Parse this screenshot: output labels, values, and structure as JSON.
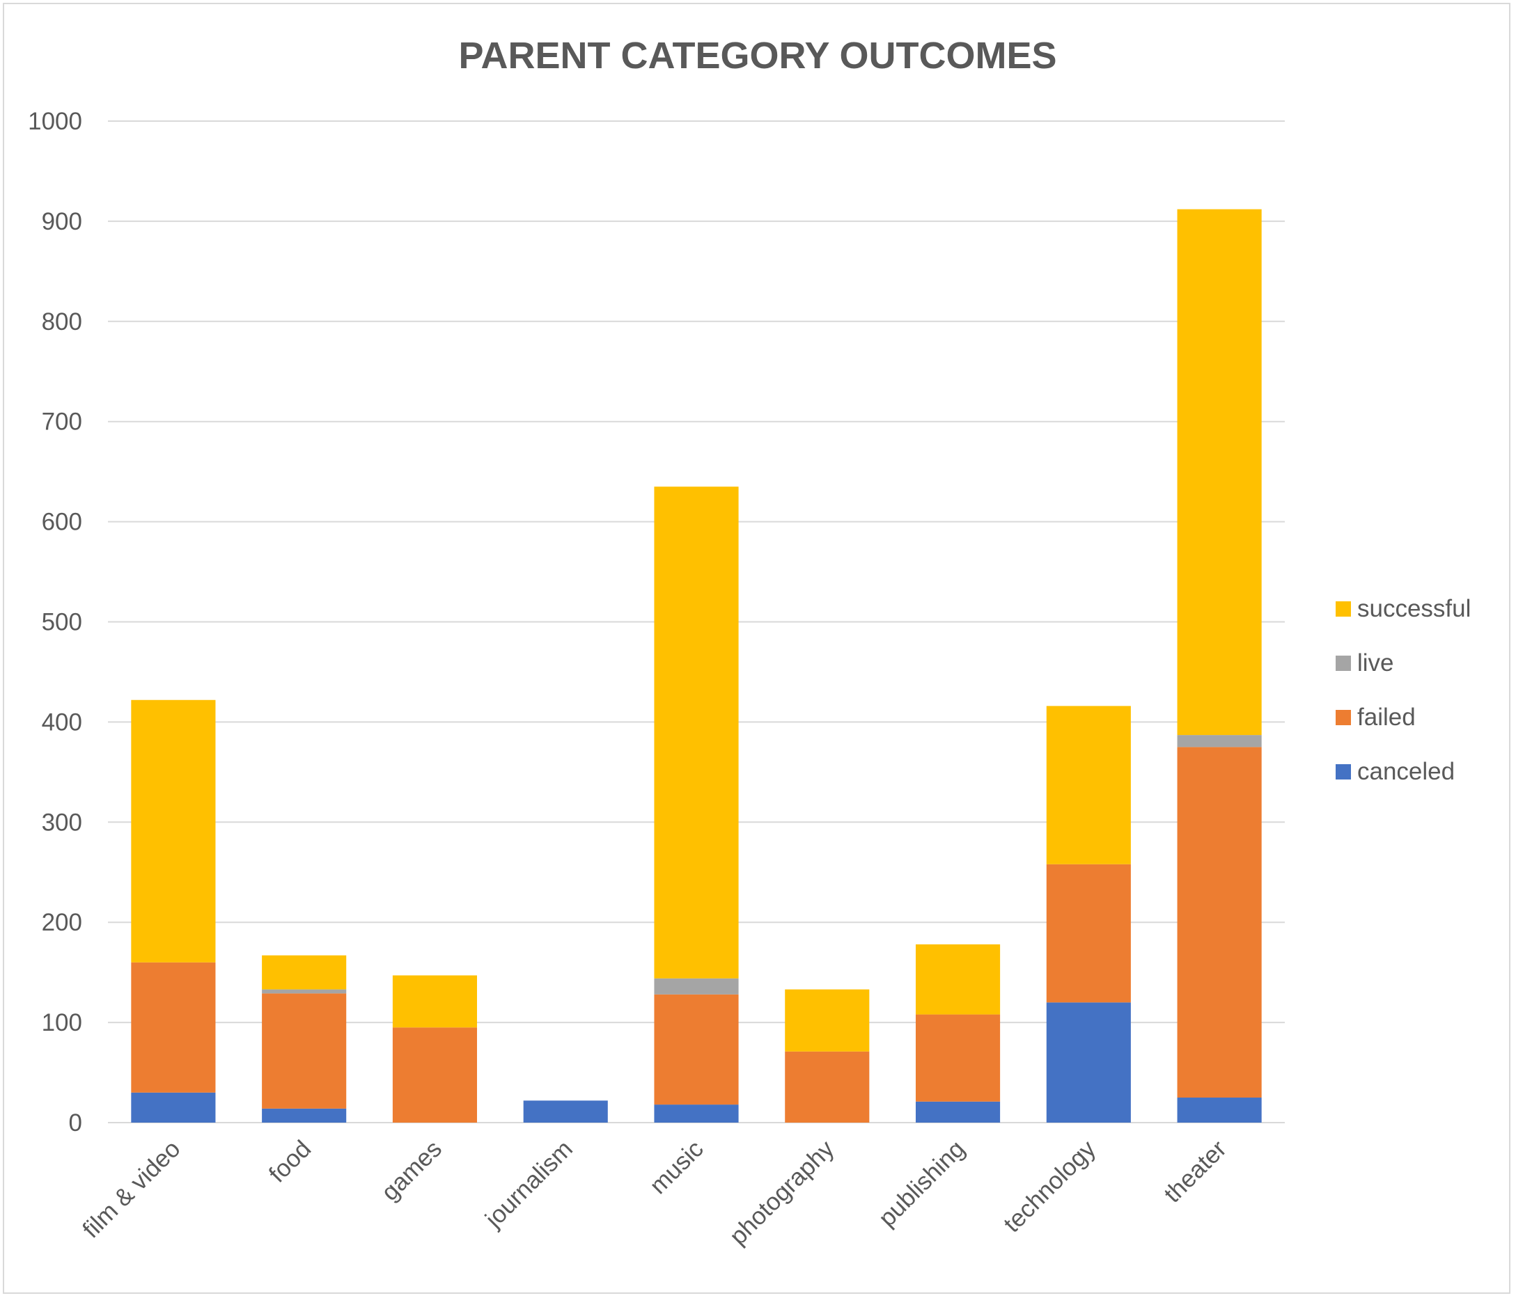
{
  "chart_data": {
    "type": "bar",
    "stacked": true,
    "title": "PARENT CATEGORY OUTCOMES",
    "xlabel": "",
    "ylabel": "",
    "ylim": [
      0,
      1000
    ],
    "yticks": [
      0,
      100,
      200,
      300,
      400,
      500,
      600,
      700,
      800,
      900,
      1000
    ],
    "grid": true,
    "legend_position": "right",
    "categories": [
      "film & video",
      "food",
      "games",
      "journalism",
      "music",
      "photography",
      "publishing",
      "technology",
      "theater"
    ],
    "series": [
      {
        "name": "canceled",
        "color": "#4472C4",
        "values": [
          30,
          14,
          0,
          22,
          18,
          0,
          21,
          120,
          25
        ]
      },
      {
        "name": "failed",
        "color": "#ED7D31",
        "values": [
          130,
          115,
          95,
          0,
          110,
          71,
          87,
          138,
          350
        ]
      },
      {
        "name": "live",
        "color": "#A5A5A5",
        "values": [
          0,
          4,
          0,
          0,
          16,
          0,
          0,
          0,
          12
        ]
      },
      {
        "name": "successful",
        "color": "#FFC000",
        "values": [
          262,
          34,
          52,
          0,
          491,
          62,
          70,
          158,
          525
        ]
      }
    ],
    "legend_order": [
      "successful",
      "live",
      "failed",
      "canceled"
    ]
  }
}
